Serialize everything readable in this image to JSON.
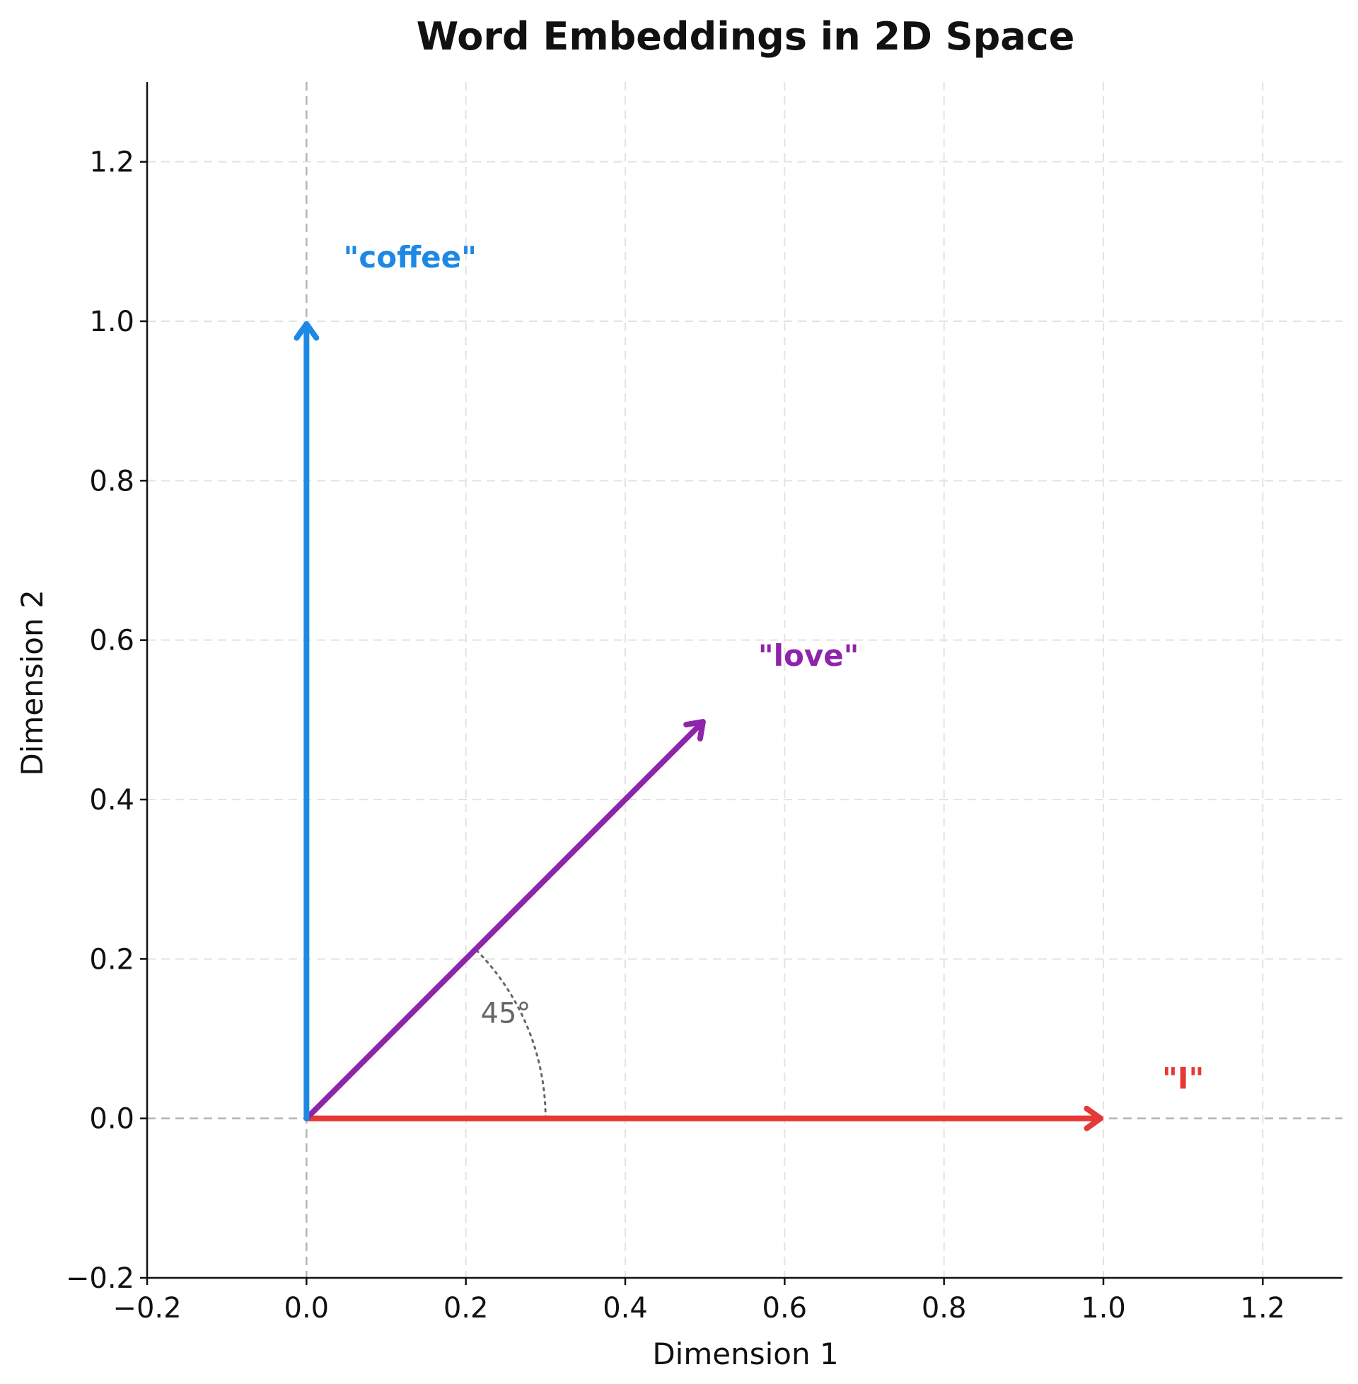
{
  "chart_data": {
    "type": "vector",
    "title": "Word Embeddings in 2D Space",
    "xlabel": "Dimension 1",
    "ylabel": "Dimension 2",
    "xlim": [
      -0.2,
      1.3
    ],
    "ylim": [
      -0.2,
      1.3
    ],
    "xticks": [
      -0.2,
      0.0,
      0.2,
      0.4,
      0.6,
      0.8,
      1.0,
      1.2
    ],
    "yticks": [
      -0.2,
      0.0,
      0.2,
      0.4,
      0.6,
      0.8,
      1.0,
      1.2
    ],
    "xtick_labels": [
      "−0.2",
      "0.0",
      "0.2",
      "0.4",
      "0.6",
      "0.8",
      "1.0",
      "1.2"
    ],
    "ytick_labels": [
      "−0.2",
      "0.0",
      "0.2",
      "0.4",
      "0.6",
      "0.8",
      "1.0",
      "1.2"
    ],
    "grid": true,
    "vectors": [
      {
        "label": "\"I\"",
        "start": [
          0,
          0
        ],
        "end": [
          1.0,
          0.0
        ],
        "color": "#e53935",
        "label_pos": [
          1.1,
          0.05
        ]
      },
      {
        "label": "\"love\"",
        "start": [
          0,
          0
        ],
        "end": [
          0.5,
          0.5
        ],
        "color": "#8e24aa",
        "label_pos": [
          0.63,
          0.58
        ]
      },
      {
        "label": "\"coffee\"",
        "start": [
          0,
          0
        ],
        "end": [
          0.0,
          1.0
        ],
        "color": "#1e88e5",
        "label_pos": [
          0.13,
          1.08
        ]
      }
    ],
    "angle_annotation": {
      "label": "45°",
      "radius": 0.3,
      "from_deg": 0,
      "to_deg": 45,
      "label_pos": [
        0.25,
        0.12
      ],
      "color": "#666666"
    }
  }
}
